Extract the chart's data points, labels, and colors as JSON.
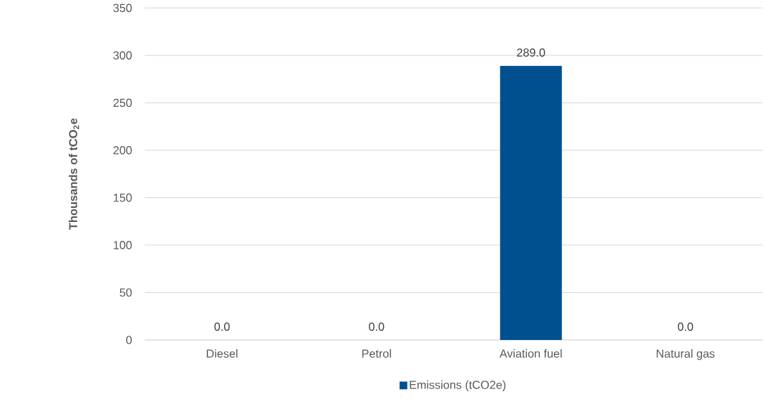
{
  "chart_data": {
    "type": "bar",
    "ylabel": "Thousands of tCO$_{2}$e",
    "categories": [
      "Diesel",
      "Petrol",
      "Aviation fuel",
      "Natural gas"
    ],
    "series": [
      {
        "name": "Emissions (tCO2e)",
        "color": "#00508f",
        "values": [
          0,
          0,
          289,
          0
        ],
        "value_labels": [
          "0.0",
          "0.0",
          "289.0",
          "0.0"
        ]
      }
    ],
    "ylim": [
      0,
      350
    ],
    "yticks": [
      0,
      50,
      100,
      150,
      200,
      250,
      300,
      350
    ],
    "grid": "y",
    "legend": "bottom"
  }
}
